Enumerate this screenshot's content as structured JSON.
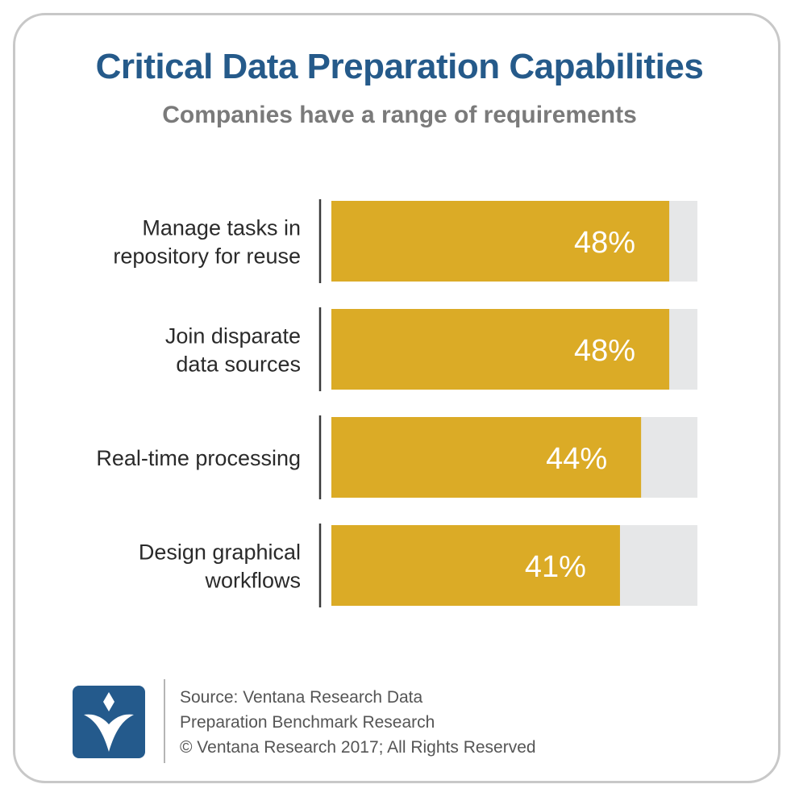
{
  "chart_data": {
    "type": "bar",
    "orientation": "horizontal",
    "title": "Critical Data Preparation Capabilities",
    "subtitle": "Companies have a range of requirements",
    "categories": [
      [
        "Manage tasks in",
        "repository for reuse"
      ],
      [
        "Join disparate",
        "data sources"
      ],
      [
        "Real-time processing"
      ],
      [
        "Design graphical",
        "workflows"
      ]
    ],
    "values": [
      48,
      48,
      44,
      41
    ],
    "value_labels": [
      "48%",
      "48%",
      "44%",
      "41%"
    ],
    "xlim": [
      0,
      52
    ],
    "grid": false,
    "legend": "none",
    "colors": {
      "bar": "#dbab26",
      "track": "#e6e7e8",
      "axis": "#3a3a3a"
    }
  },
  "footer": {
    "source_lines": [
      "Source: Ventana Research Data",
      "Preparation Benchmark Research",
      "© Ventana Research 2017; All Rights Reserved"
    ],
    "logo_icon": "ventana-v-logo-icon"
  },
  "theme": {
    "title_color": "#255a8a",
    "subtitle_color": "#7a7a7a",
    "border_color": "#c8c8c8"
  }
}
